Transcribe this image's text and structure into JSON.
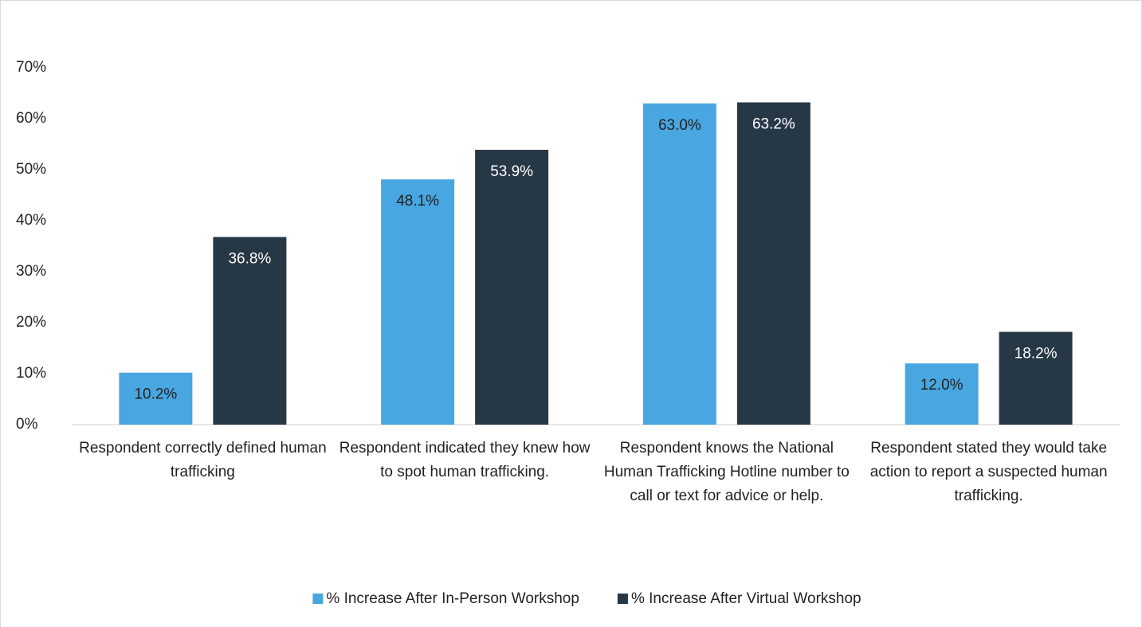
{
  "chart_data": {
    "type": "bar",
    "categories": [
      "Respondent correctly defined human trafficking",
      "Respondent indicated they knew how to spot human trafficking.",
      "Respondent knows the National Human Trafficking Hotline number to call or text for advice or help.",
      "Respondent stated they would take action to report a suspected human trafficking."
    ],
    "series": [
      {
        "name": "% Increase After In-Person Workshop",
        "color": "#48a6e0",
        "values": [
          10.2,
          48.1,
          63.0,
          12.0
        ],
        "value_labels": [
          "10.2%",
          "48.1%",
          "63.0%",
          "12.0%"
        ]
      },
      {
        "name": "% Increase After Virtual Workshop",
        "color": "#263746",
        "values": [
          36.8,
          53.9,
          63.2,
          18.2
        ],
        "value_labels": [
          "36.8%",
          "53.9%",
          "63.2%",
          "18.2%"
        ]
      }
    ],
    "ylim": [
      0,
      70
    ],
    "yticks": [
      {
        "value": 0,
        "label": "0%"
      },
      {
        "value": 10,
        "label": "10%"
      },
      {
        "value": 20,
        "label": "20%"
      },
      {
        "value": 30,
        "label": "30%"
      },
      {
        "value": 40,
        "label": "40%"
      },
      {
        "value": 50,
        "label": "50%"
      },
      {
        "value": 60,
        "label": "60%"
      },
      {
        "value": 70,
        "label": "70%"
      }
    ],
    "grid": false,
    "legend": "bottom"
  }
}
